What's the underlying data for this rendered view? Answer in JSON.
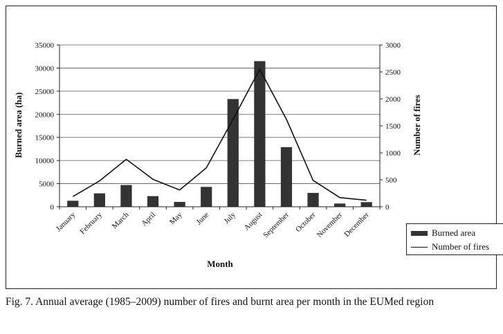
{
  "chart_data": {
    "type": "bar+line",
    "categories": [
      "January",
      "February",
      "March",
      "April",
      "May",
      "June",
      "July",
      "August",
      "September",
      "October",
      "November",
      "December"
    ],
    "series": [
      {
        "name": "Burned area",
        "type": "bar",
        "axis": "left",
        "color": "#333333",
        "values": [
          1300,
          2900,
          4700,
          2300,
          1050,
          4300,
          23300,
          31500,
          12900,
          3000,
          700,
          1000
        ]
      },
      {
        "name": "Number of fires",
        "type": "line",
        "axis": "right",
        "color": "#111111",
        "values": [
          190,
          480,
          880,
          510,
          310,
          720,
          1620,
          2550,
          1620,
          490,
          170,
          120
        ]
      }
    ],
    "xlabel": "Month",
    "ylabel": "Burned area (ha)",
    "y2label": "Number of fires",
    "ylim": [
      0,
      35000
    ],
    "y2lim": [
      0,
      3000
    ],
    "yticks": [
      "0",
      "5000",
      "10000",
      "15000",
      "20000",
      "25000",
      "30000",
      "35000"
    ],
    "y2ticks": [
      "0",
      "500",
      "1000",
      "1500",
      "2000",
      "2500",
      "3000"
    ],
    "grid": true,
    "legend_position": "bottom-right"
  },
  "caption": "Fig. 7. Annual average (1985–2009) number of fires and burnt area per month in the EUMed region"
}
